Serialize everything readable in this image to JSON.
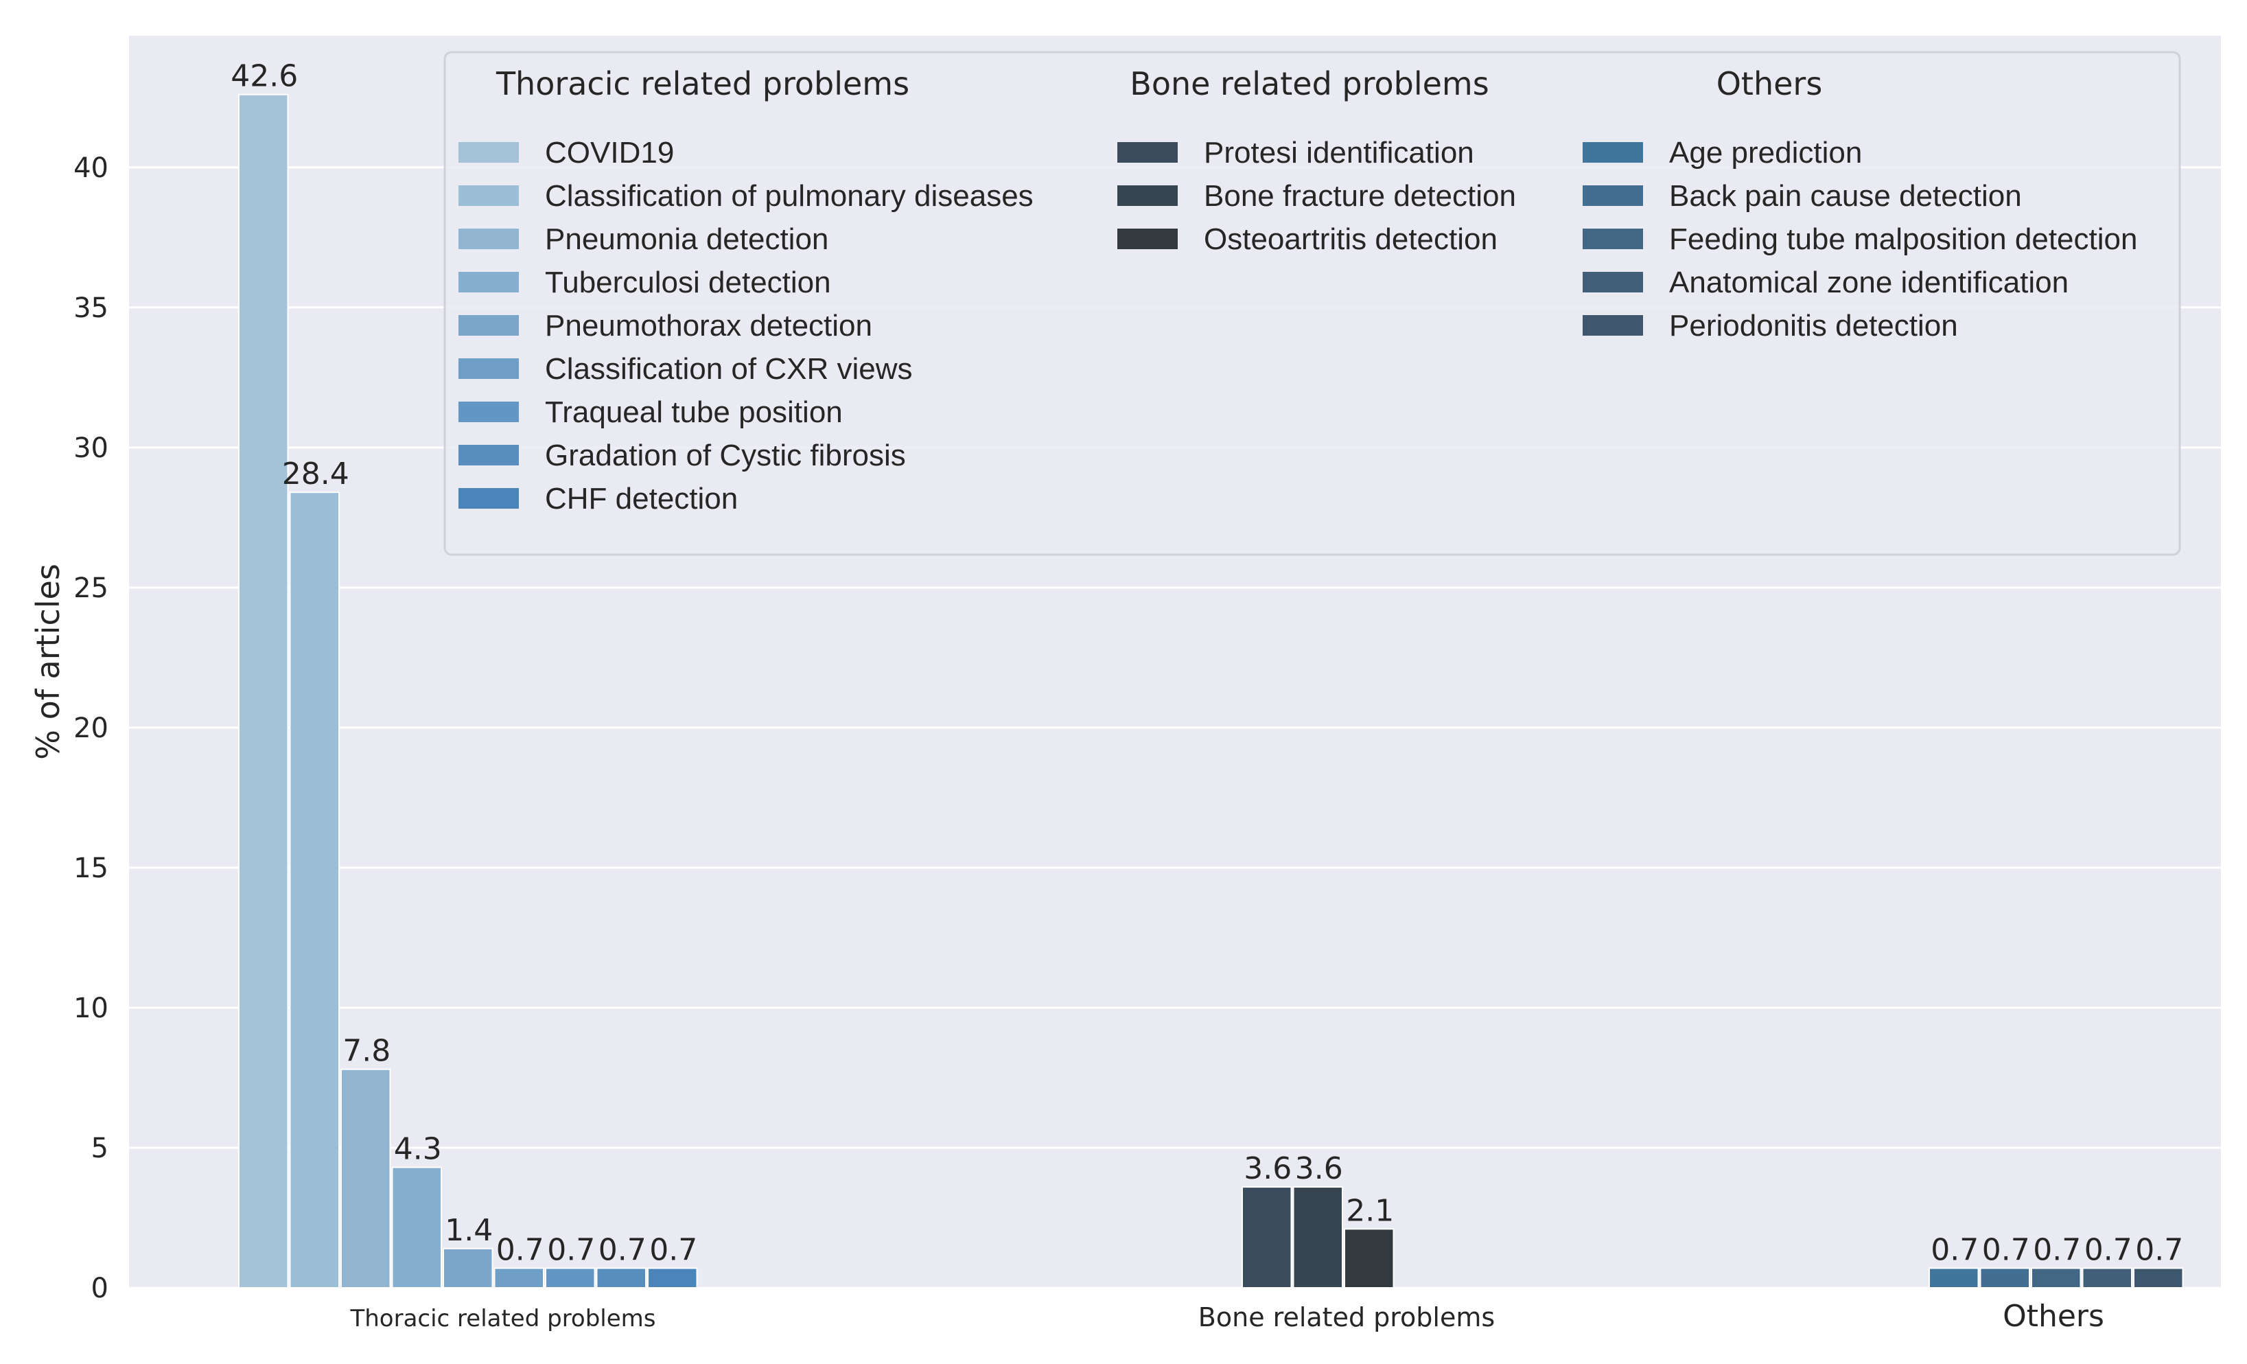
{
  "chart_data": {
    "type": "bar",
    "title": "",
    "xlabel": "",
    "ylabel": "% of articles",
    "ylim": [
      0,
      44.7
    ],
    "yticks": [
      0,
      5,
      10,
      15,
      20,
      25,
      30,
      35,
      40
    ],
    "grid": true,
    "legend_position": "top-right",
    "groups": [
      {
        "name": "Thoracic related problems",
        "series": [
          {
            "name": "COVID19",
            "value": 42.6,
            "label": "42.6",
            "color": "#a5c3d8"
          },
          {
            "name": "Classification of pulmonary diseases",
            "value": 28.4,
            "label": "28.4",
            "color": "#9bbdd5"
          },
          {
            "name": "Pneumonia detection",
            "value": 7.8,
            "label": "7.8",
            "color": "#91b5d1"
          },
          {
            "name": "Tuberculosi detection",
            "value": 4.3,
            "label": "4.3",
            "color": "#86aece"
          },
          {
            "name": "Pneumothorax detection",
            "value": 1.4,
            "label": "1.4",
            "color": "#7ba6ca"
          },
          {
            "name": "Classification of CXR views",
            "value": 0.7,
            "label": "0.7",
            "color": "#6f9ec6"
          },
          {
            "name": "Traqueal tube position",
            "value": 0.7,
            "label": "0.7",
            "color": "#6396c2"
          },
          {
            "name": "Gradation of Cystic fibrosis",
            "value": 0.7,
            "label": "0.7",
            "color": "#578ebe"
          },
          {
            "name": "CHF detection",
            "value": 0.7,
            "label": "0.7",
            "color": "#4a85b9"
          }
        ]
      },
      {
        "name": "Bone related problems",
        "series": [
          {
            "name": "Protesi identification",
            "value": 3.6,
            "label": "3.6",
            "color": "#3a4c5b"
          },
          {
            "name": "Bone fracture detection",
            "value": 3.6,
            "label": "3.6",
            "color": "#364550"
          },
          {
            "name": "Osteoartritis detection",
            "value": 2.1,
            "label": "2.1",
            "color": "#323a40"
          }
        ]
      },
      {
        "name": "Others",
        "series": [
          {
            "name": "Age prediction",
            "value": 0.7,
            "label": "0.7",
            "color": "#41769c"
          },
          {
            "name": "Back pain cause detection",
            "value": 0.7,
            "label": "0.7",
            "color": "#426e91"
          },
          {
            "name": "Feeding tube malposition detection",
            "value": 0.7,
            "label": "0.7",
            "color": "#426785"
          },
          {
            "name": "Anatomical zone identification",
            "value": 0.7,
            "label": "0.7",
            "color": "#415f79"
          },
          {
            "name": "Periodonitis detection",
            "value": 0.7,
            "label": "0.7",
            "color": "#3f576c"
          }
        ]
      }
    ]
  }
}
